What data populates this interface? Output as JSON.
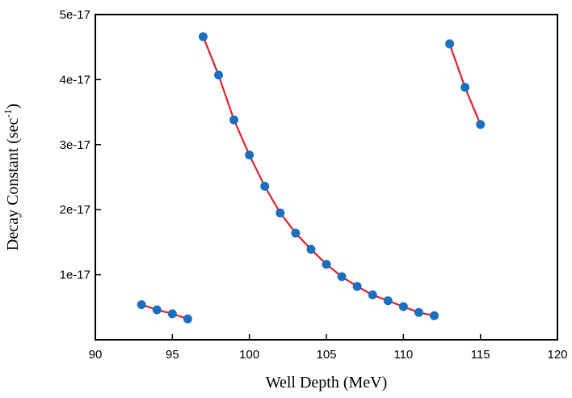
{
  "chart_data": {
    "type": "scatter",
    "xlabel": "Well Depth (MeV)",
    "ylabel": {
      "text": "Decay Constant (sec",
      "superscript": "-1",
      "suffix": ")"
    },
    "xlim": [
      90,
      120
    ],
    "ylim": [
      0,
      5e-17
    ],
    "x_ticks": [
      90,
      95,
      100,
      105,
      110,
      115,
      120
    ],
    "x_tick_labels": [
      "90",
      "95",
      "100",
      "105",
      "110",
      "115",
      "120"
    ],
    "y_ticks": [
      1e-17,
      2e-17,
      3e-17,
      4e-17,
      5e-17
    ],
    "y_tick_labels": [
      "1e-17",
      "2e-17",
      "3e-17",
      "4e-17",
      "5e-17"
    ],
    "grid": false,
    "line_color": "#e0202a",
    "marker_color": "#1a6fbf",
    "series": [
      {
        "x": [
          93,
          94,
          95,
          96
        ],
        "y": [
          5.4e-18,
          4.6e-18,
          4e-18,
          3.2e-18
        ]
      },
      {
        "x": [
          97,
          98,
          99,
          100,
          101,
          102,
          103,
          104,
          105,
          106,
          107,
          108,
          109,
          110,
          111,
          112
        ],
        "y": [
          4.66e-17,
          4.07e-17,
          3.38e-17,
          2.84e-17,
          2.36e-17,
          1.95e-17,
          1.64e-17,
          1.39e-17,
          1.16e-17,
          9.7e-18,
          8.2e-18,
          6.9e-18,
          6e-18,
          5.1e-18,
          4.2e-18,
          3.7e-18
        ]
      },
      {
        "x": [
          113,
          114,
          115
        ],
        "y": [
          4.55e-17,
          3.88e-17,
          3.31e-17
        ]
      }
    ]
  }
}
